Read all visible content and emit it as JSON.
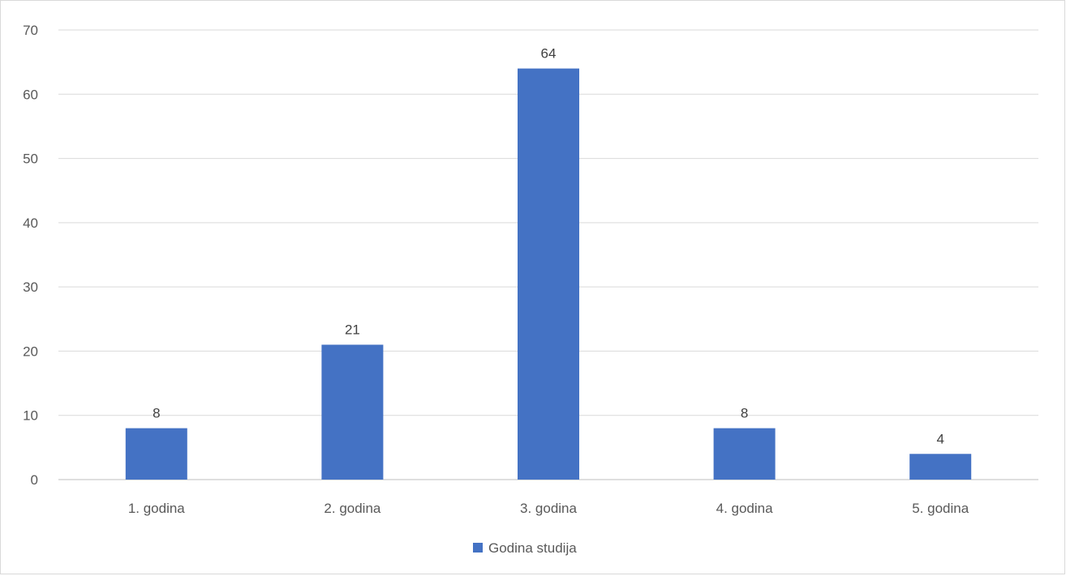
{
  "chart_data": {
    "type": "bar",
    "categories": [
      "1. godina",
      "2. godina",
      "3. godina",
      "4. godina",
      "5. godina"
    ],
    "series": [
      {
        "name": "Godina studija",
        "values": [
          8,
          21,
          64,
          8,
          4
        ],
        "color": "#4472c4"
      }
    ],
    "ylim": [
      0,
      70
    ],
    "yticks": [
      0,
      10,
      20,
      30,
      40,
      50,
      60,
      70
    ],
    "grid": true,
    "data_labels": true,
    "legend_position": "bottom"
  }
}
